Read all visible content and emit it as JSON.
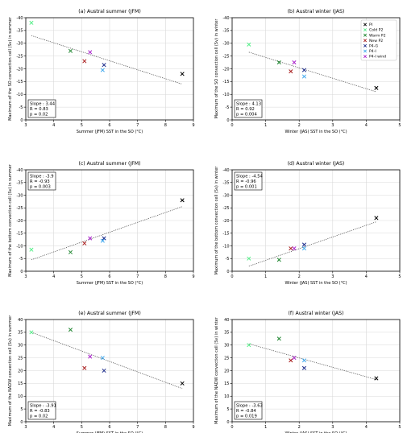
{
  "colors": {
    "PI": "#000000",
    "Cold P2": "#55ee88",
    "Warm P2": "#228833",
    "New P2": "#aa2222",
    "P4-G": "#1a2a8a",
    "P4-I": "#44aaee",
    "P4-I wind": "#aa22cc"
  },
  "legend": [
    "PI",
    "Cold P2",
    "Warm P2",
    "New P2",
    "P4-G",
    "P4-I",
    "P4-I wind"
  ],
  "chart_data": [
    {
      "type": "scatter",
      "title": "(a) Austral summer (JFM)",
      "xlabel": "Summer (JFM) SST in the SO (°C)",
      "ylabel": "Maximum of the SO convection cell (Sv) in summer",
      "xlim": [
        3,
        9
      ],
      "ylim": [
        0,
        -40
      ],
      "xticks": [
        "3",
        "4",
        "5",
        "6",
        "7",
        "8",
        "9"
      ],
      "yticks": [
        "0",
        "-5",
        "-10",
        "-15",
        "-20",
        "-25",
        "-30",
        "-35",
        "-40"
      ],
      "grid": true,
      "points": [
        {
          "series": "PI",
          "x": 8.6,
          "y": -18
        },
        {
          "series": "Cold P2",
          "x": 3.2,
          "y": -38
        },
        {
          "series": "Warm P2",
          "x": 4.6,
          "y": -27
        },
        {
          "series": "New P2",
          "x": 5.1,
          "y": -23
        },
        {
          "series": "P4-G",
          "x": 5.8,
          "y": -21.5
        },
        {
          "series": "P4-I",
          "x": 5.75,
          "y": -19.5
        },
        {
          "series": "P4-I wind",
          "x": 5.3,
          "y": -26.5
        }
      ],
      "fit": {
        "x": [
          3.2,
          8.6
        ],
        "y": [
          -33,
          -14
        ]
      },
      "stats": [
        "Slope : 3.44",
        "R = 0.83",
        "p = 0.02"
      ],
      "stats_pos": "bottom-left"
    },
    {
      "type": "scatter",
      "title": "(b) Austral winter (JAS)",
      "xlabel": "Winter (JAS) SST in the SO (°C)",
      "ylabel": "Maximum of the SO convection cell (Sv) in winter",
      "xlim": [
        0,
        5
      ],
      "ylim": [
        0,
        -40
      ],
      "xticks": [
        "0",
        "1",
        "2",
        "3",
        "4",
        "5"
      ],
      "yticks": [
        "0",
        "-5",
        "-10",
        "-15",
        "-20",
        "-25",
        "-30",
        "-35",
        "-40"
      ],
      "grid": true,
      "points": [
        {
          "series": "PI",
          "x": 4.3,
          "y": -12.5
        },
        {
          "series": "Cold P2",
          "x": 0.5,
          "y": -29.5
        },
        {
          "series": "Warm P2",
          "x": 1.4,
          "y": -22.5
        },
        {
          "series": "New P2",
          "x": 1.75,
          "y": -19
        },
        {
          "series": "P4-G",
          "x": 2.15,
          "y": -19.5
        },
        {
          "series": "P4-I",
          "x": 2.15,
          "y": -17
        },
        {
          "series": "P4-I wind",
          "x": 1.85,
          "y": -22.5
        }
      ],
      "fit": {
        "x": [
          0.5,
          4.3
        ],
        "y": [
          -26.5,
          -11
        ]
      },
      "stats": [
        "Slope : 4.13",
        "R = 0.92",
        "p = 0.004"
      ],
      "stats_pos": "bottom-left",
      "legend_pos": "top-right"
    },
    {
      "type": "scatter",
      "title": "(c) Austral summer (JFM)",
      "xlabel": "Summer (JFM) SST in the SO (°C)",
      "ylabel": "Maximum of the bottom convection cell (Sv) in summer",
      "xlim": [
        3,
        9
      ],
      "ylim": [
        0,
        -40
      ],
      "xticks": [
        "3",
        "4",
        "5",
        "6",
        "7",
        "8",
        "9"
      ],
      "yticks": [
        "0",
        "-5",
        "-10",
        "-15",
        "-20",
        "-25",
        "-30",
        "-35",
        "-40"
      ],
      "grid": true,
      "points": [
        {
          "series": "PI",
          "x": 8.6,
          "y": -28
        },
        {
          "series": "Cold P2",
          "x": 3.2,
          "y": -8.5
        },
        {
          "series": "Warm P2",
          "x": 4.6,
          "y": -7.5
        },
        {
          "series": "New P2",
          "x": 5.1,
          "y": -11
        },
        {
          "series": "P4-G",
          "x": 5.8,
          "y": -13
        },
        {
          "series": "P4-I",
          "x": 5.75,
          "y": -12
        },
        {
          "series": "P4-I wind",
          "x": 5.3,
          "y": -13
        }
      ],
      "fit": {
        "x": [
          3.2,
          8.6
        ],
        "y": [
          -4.5,
          -25.5
        ]
      },
      "stats": [
        "Slope : -3.9",
        "R = -0.93",
        "p = 0.003"
      ],
      "stats_pos": "top-left"
    },
    {
      "type": "scatter",
      "title": "(d) Austral winter (JAS)",
      "xlabel": "Winter (JAS) SST in the SO (°C)",
      "ylabel": "Maximum of the bottom convection cell (Sv) in winter",
      "xlim": [
        0,
        5
      ],
      "ylim": [
        0,
        -40
      ],
      "xticks": [
        "0",
        "1",
        "2",
        "3",
        "4",
        "5"
      ],
      "yticks": [
        "0",
        "-5",
        "-10",
        "-15",
        "-20",
        "-25",
        "-30",
        "-35",
        "-40"
      ],
      "grid": true,
      "points": [
        {
          "series": "PI",
          "x": 4.3,
          "y": -21
        },
        {
          "series": "Cold P2",
          "x": 0.5,
          "y": -5
        },
        {
          "series": "Warm P2",
          "x": 1.4,
          "y": -4.5
        },
        {
          "series": "New P2",
          "x": 1.75,
          "y": -9
        },
        {
          "series": "P4-G",
          "x": 2.15,
          "y": -10.5
        },
        {
          "series": "P4-I",
          "x": 2.15,
          "y": -9
        },
        {
          "series": "P4-I wind",
          "x": 1.85,
          "y": -9
        }
      ],
      "fit": {
        "x": [
          0.5,
          4.3
        ],
        "y": [
          -2,
          -19.5
        ]
      },
      "stats": [
        "Slope : -4.54",
        "R = -0.96",
        "p = 0.001"
      ],
      "stats_pos": "top-left"
    },
    {
      "type": "scatter",
      "title": "(e) Austral summer (JFM)",
      "xlabel": "Summer (JFM) SST in the SO (°C)",
      "ylabel": "Maximum of the NADW convection cell (Sv) in summer",
      "xlim": [
        3,
        9
      ],
      "ylim": [
        0,
        40
      ],
      "xticks": [
        "3",
        "4",
        "5",
        "6",
        "7",
        "8",
        "9"
      ],
      "yticks": [
        "0",
        "5",
        "10",
        "15",
        "20",
        "25",
        "30",
        "35",
        "40"
      ],
      "grid": true,
      "points": [
        {
          "series": "PI",
          "x": 8.6,
          "y": 15
        },
        {
          "series": "Cold P2",
          "x": 3.2,
          "y": 35
        },
        {
          "series": "Warm P2",
          "x": 4.6,
          "y": 36
        },
        {
          "series": "New P2",
          "x": 5.1,
          "y": 21
        },
        {
          "series": "P4-G",
          "x": 5.8,
          "y": 20
        },
        {
          "series": "P4-I",
          "x": 5.75,
          "y": 25
        },
        {
          "series": "P4-I wind",
          "x": 5.3,
          "y": 25.5
        }
      ],
      "fit": {
        "x": [
          3.2,
          8.6
        ],
        "y": [
          35,
          13
        ]
      },
      "stats": [
        "Slope : -3.91",
        "R = -0.83",
        "p = 0.02"
      ],
      "stats_pos": "bottom-left"
    },
    {
      "type": "scatter",
      "title": "(f) Austral winter (JAS)",
      "xlabel": "Winter (JAS) SST in the SO (°C)",
      "ylabel": "Maximum of the NADW convection cell (Sv) in winter",
      "xlim": [
        0,
        5
      ],
      "ylim": [
        0,
        40
      ],
      "xticks": [
        "0",
        "1",
        "2",
        "3",
        "4",
        "5"
      ],
      "yticks": [
        "0",
        "5",
        "10",
        "15",
        "20",
        "25",
        "30",
        "35",
        "40"
      ],
      "grid": true,
      "points": [
        {
          "series": "PI",
          "x": 4.3,
          "y": 17
        },
        {
          "series": "Cold P2",
          "x": 0.5,
          "y": 30
        },
        {
          "series": "Warm P2",
          "x": 1.4,
          "y": 32.5
        },
        {
          "series": "New P2",
          "x": 1.75,
          "y": 24
        },
        {
          "series": "P4-G",
          "x": 2.15,
          "y": 21
        },
        {
          "series": "P4-I",
          "x": 2.15,
          "y": 24
        },
        {
          "series": "P4-I wind",
          "x": 1.85,
          "y": 25
        }
      ],
      "fit": {
        "x": [
          0.5,
          4.3
        ],
        "y": [
          30.5,
          16.5
        ]
      },
      "stats": [
        "Slope : -3.63",
        "R = -0.84",
        "p = 0.019"
      ],
      "stats_pos": "bottom-left"
    }
  ]
}
